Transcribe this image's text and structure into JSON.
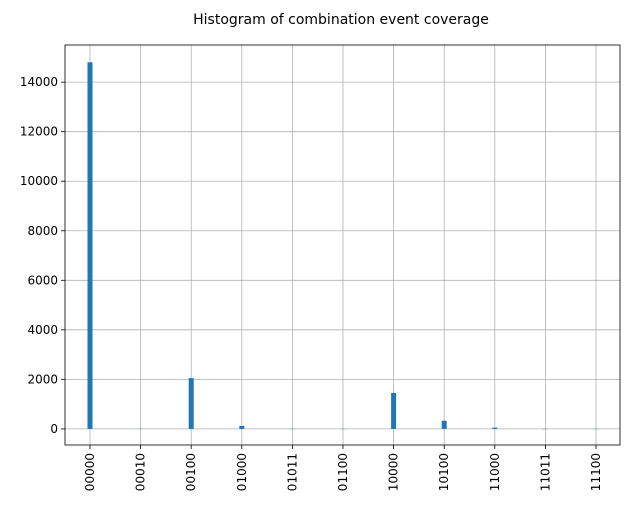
{
  "chart_data": {
    "type": "bar",
    "title": "Histogram of combination event coverage",
    "xlabel": "",
    "ylabel": "",
    "categories": [
      "00000",
      "00010",
      "00100",
      "01000",
      "01011",
      "01100",
      "10000",
      "10100",
      "11000",
      "11011",
      "11100"
    ],
    "values": [
      14800,
      5,
      2050,
      120,
      3,
      4,
      1450,
      330,
      50,
      2,
      3
    ],
    "ylim": [
      -650,
      15500
    ],
    "yticks": [
      0,
      2000,
      4000,
      6000,
      8000,
      10000,
      12000,
      14000
    ],
    "grid": true,
    "bar_color": "#1f77b4"
  }
}
